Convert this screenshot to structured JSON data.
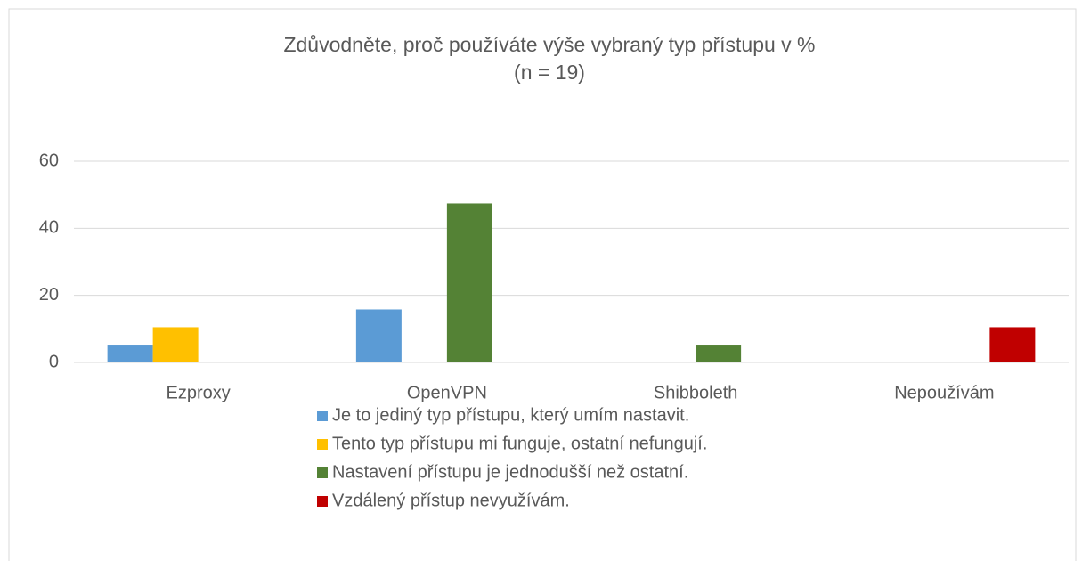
{
  "chart_data": {
    "type": "bar",
    "title": "Zdůvodněte, proč používáte výše vybraný typ přístupu v %",
    "subtitle": "(n = 19)",
    "categories": [
      "Ezproxy",
      "OpenVPN",
      "Shibboleth",
      "Nepoužívám"
    ],
    "series": [
      {
        "name": "Je to jediný typ přístupu, který umím nastavit.",
        "color": "#5b9bd5",
        "values": [
          5.3,
          15.8,
          0,
          0
        ]
      },
      {
        "name": "Tento typ přístupu mi funguje, ostatní nefungují.",
        "color": "#ffc000",
        "values": [
          10.5,
          0,
          0,
          0
        ]
      },
      {
        "name": "Nastavení přístupu je jednodušší než ostatní.",
        "color": "#548235",
        "values": [
          0,
          47.4,
          5.3,
          0
        ]
      },
      {
        "name": "Vzdálený přístup nevyužívám.",
        "color": "#c00000",
        "values": [
          0,
          0,
          0,
          10.5
        ]
      }
    ],
    "ylim": [
      0,
      60
    ],
    "yticks": [
      0,
      20,
      40,
      60
    ],
    "grid": true,
    "legend": "bottom"
  }
}
